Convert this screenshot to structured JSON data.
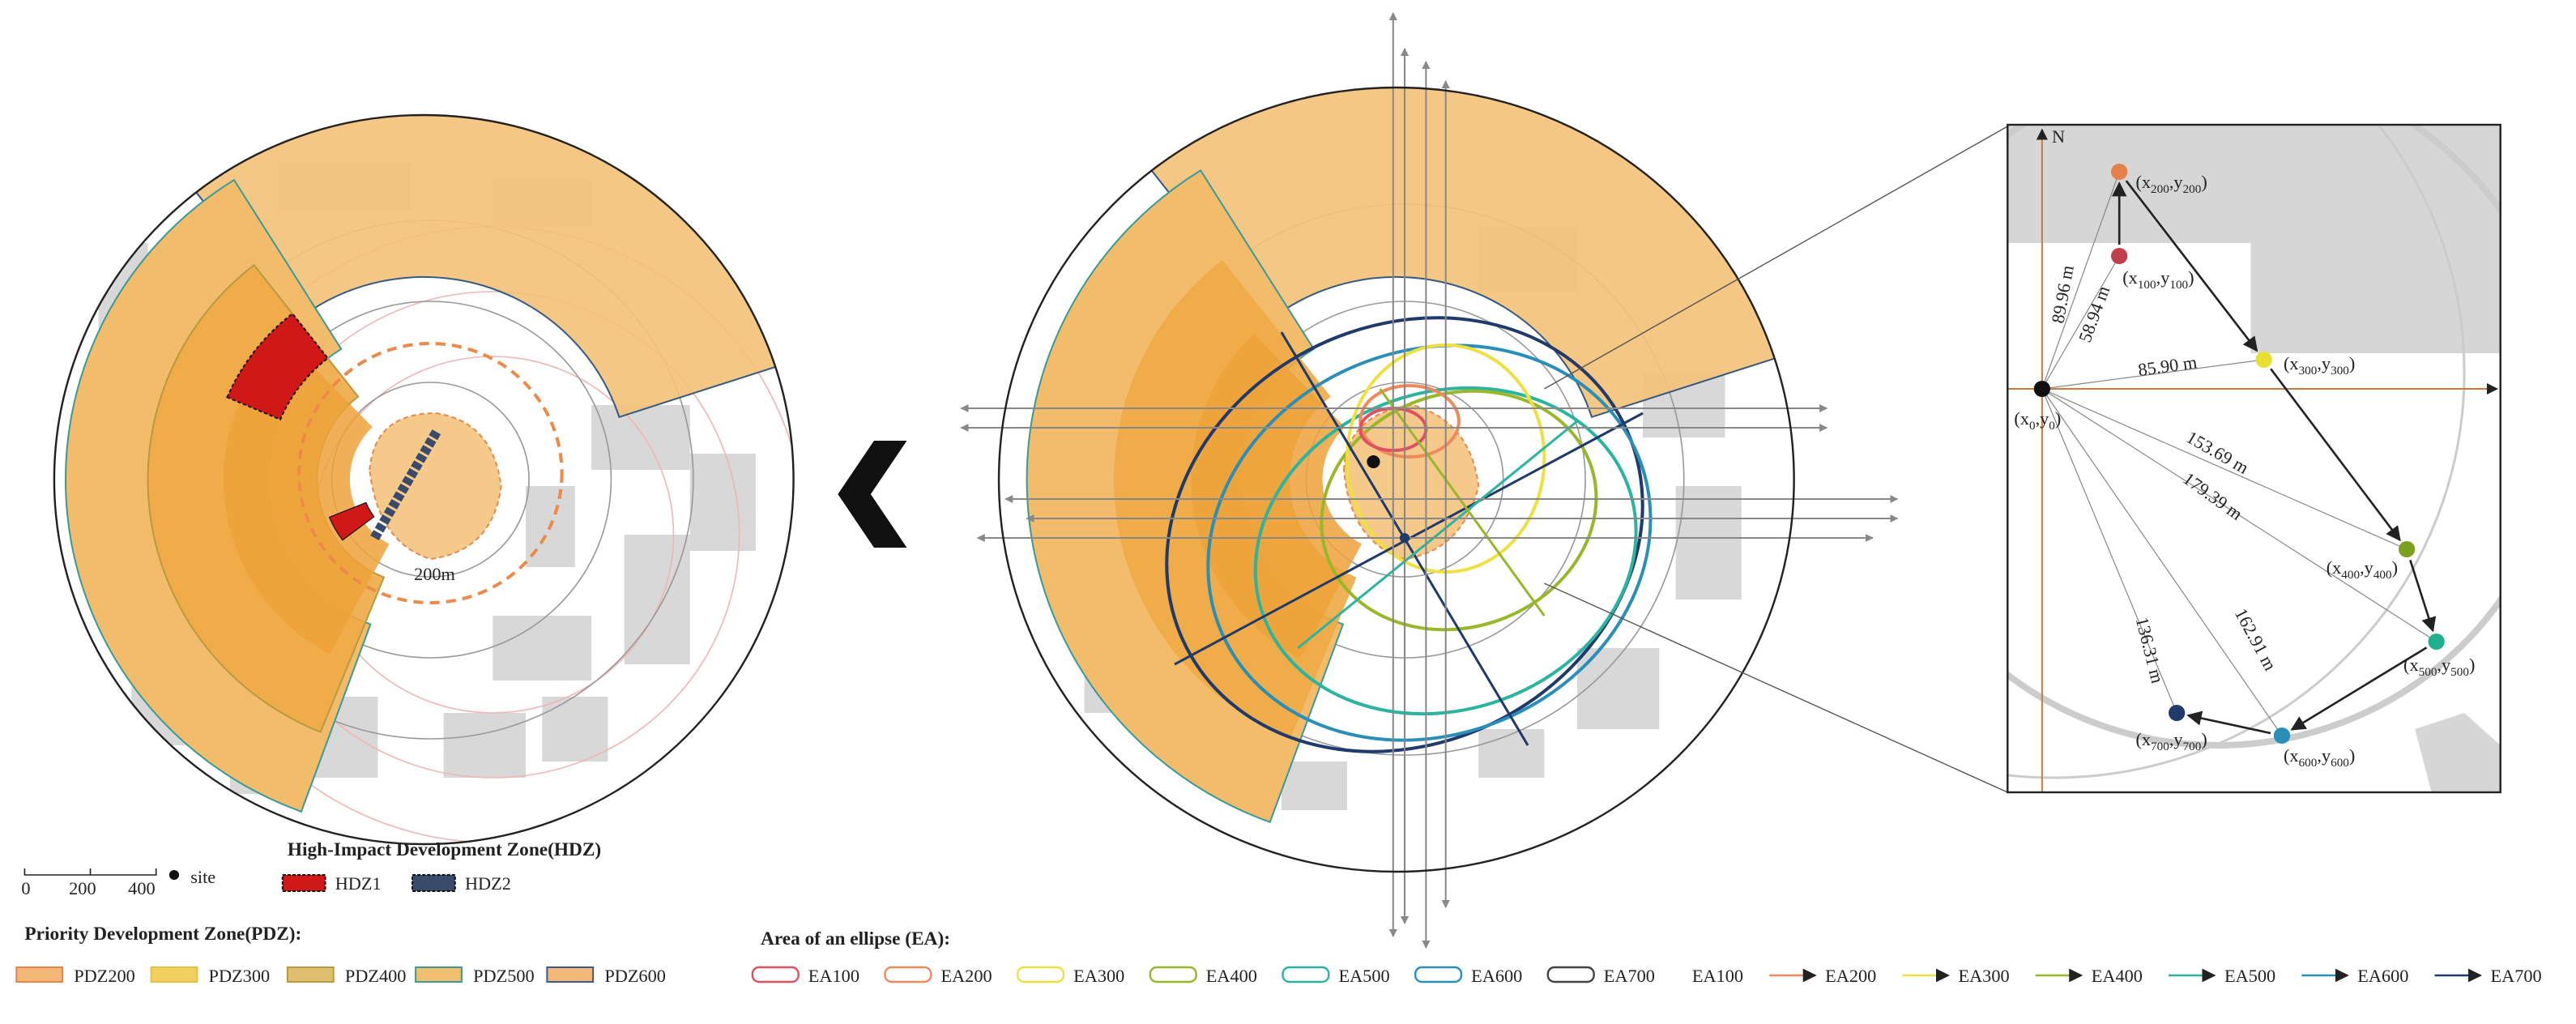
{
  "left_map": {
    "scale_label": "200m"
  },
  "legend": {
    "scale_ticks": [
      "0",
      "200",
      "400"
    ],
    "site": "site",
    "hdz_title": "High-Impact Development Zone(HDZ)",
    "hdz": [
      "HDZ1",
      "HDZ2"
    ],
    "pdz_title": "Priority Development Zone(PDZ):",
    "pdz": [
      "PDZ200",
      "PDZ300",
      "PDZ400",
      "PDZ500",
      "PDZ600"
    ],
    "ea_title": "Area of an ellipse (EA):",
    "ea_ellipses": [
      "EA100",
      "EA200",
      "EA300",
      "EA400",
      "EA500",
      "EA600",
      "EA700"
    ],
    "ea_arrows": [
      "EA100",
      "EA200",
      "EA300",
      "EA400",
      "EA500",
      "EA600",
      "EA700"
    ]
  },
  "inset": {
    "north": "N",
    "points": [
      {
        "label": [
          "(x",
          "0",
          ",y",
          "0",
          ")"
        ]
      },
      {
        "label": [
          "(x",
          "100",
          ",y",
          "100",
          ")"
        ]
      },
      {
        "label": [
          "(x",
          "200",
          ",y",
          "200",
          ")"
        ]
      },
      {
        "label": [
          "(x",
          "300",
          ",y",
          "300",
          ")"
        ]
      },
      {
        "label": [
          "(x",
          "400",
          ",y",
          "400",
          ")"
        ]
      },
      {
        "label": [
          "(x",
          "500",
          ",y",
          "500",
          ")"
        ]
      },
      {
        "label": [
          "(x",
          "600",
          ",y",
          "600",
          ")"
        ]
      },
      {
        "label": [
          "(x",
          "700",
          ",y",
          "700",
          ")"
        ]
      }
    ],
    "distances": [
      "89.96 m",
      "58.94 m",
      "85.90 m",
      "153.69 m",
      "179.39 m",
      "162.91 m",
      "136.31 m"
    ]
  }
}
